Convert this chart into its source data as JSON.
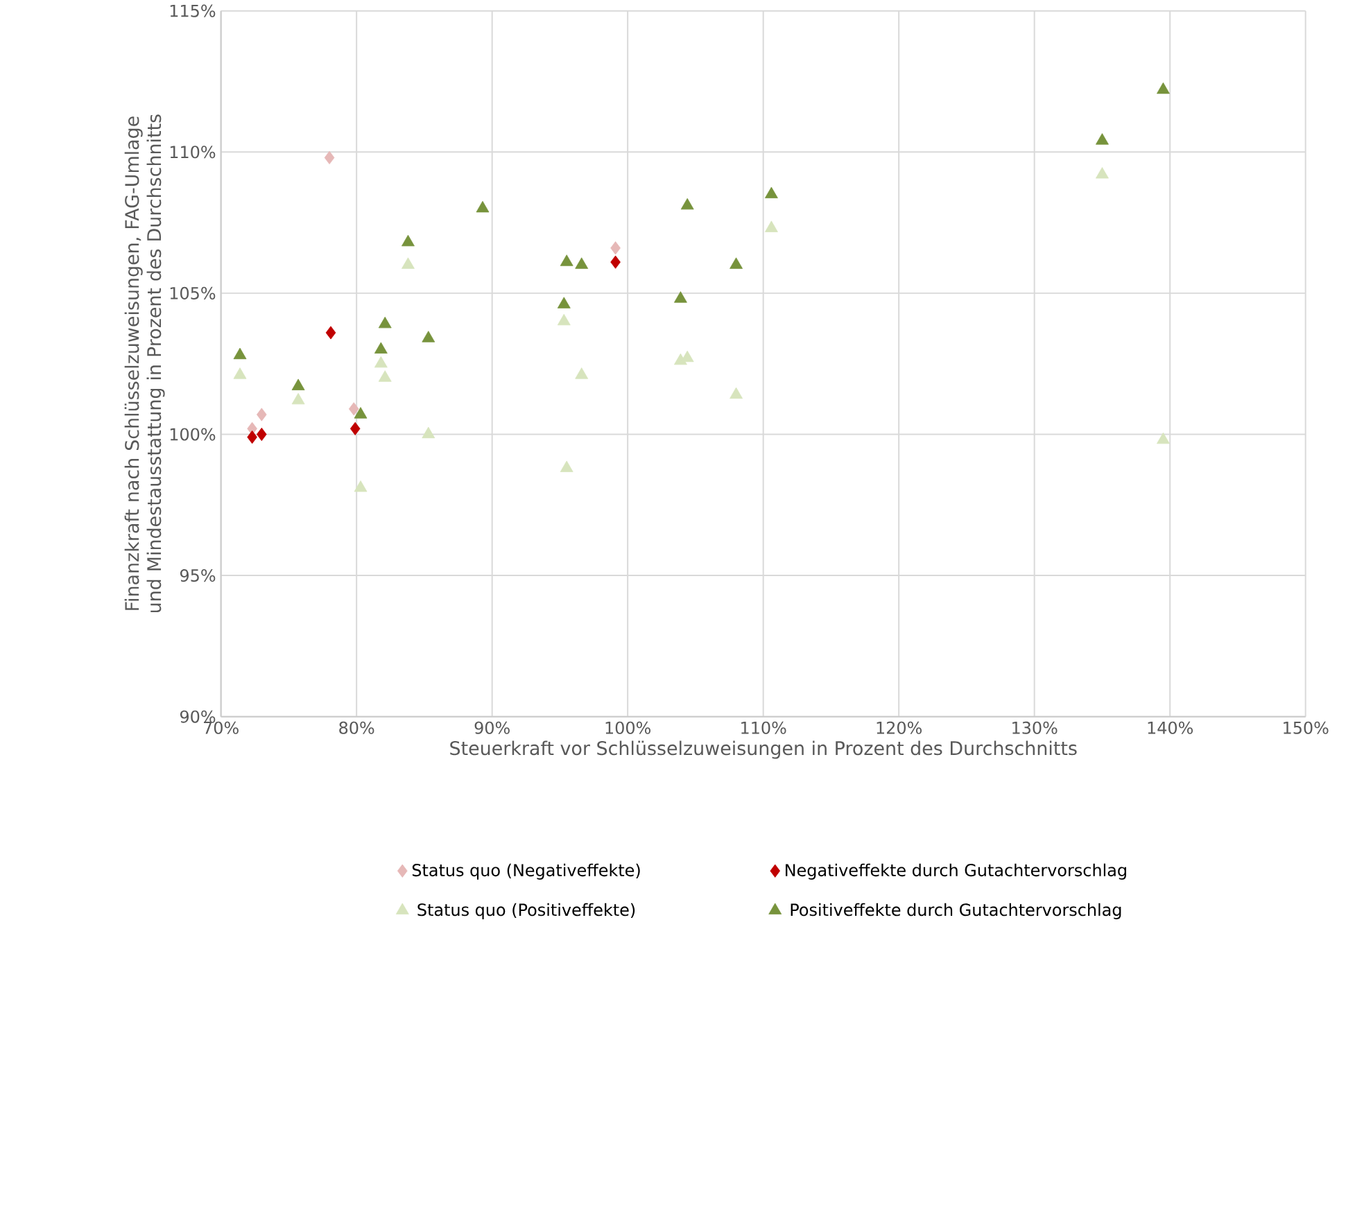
{
  "chart_data": {
    "type": "scatter",
    "xlabel": "Steuerkraft vor Schlüsselzuweisungen in Prozent des Durchschnitts",
    "ylabel": "Finanzkraft nach Schlüsselzuweisungen, FAG-Umlage und Mindestausstattung in Prozent des Durchschnitts",
    "xlim": [
      70,
      150
    ],
    "ylim": [
      90,
      115
    ],
    "xticks": [
      {
        "value": 70,
        "label": "70%"
      },
      {
        "value": 80,
        "label": "80%"
      },
      {
        "value": 90,
        "label": "90%"
      },
      {
        "value": 100,
        "label": "100%"
      },
      {
        "value": 110,
        "label": "110%"
      },
      {
        "value": 120,
        "label": "120%"
      },
      {
        "value": 130,
        "label": "130%"
      },
      {
        "value": 140,
        "label": "140%"
      },
      {
        "value": 150,
        "label": "150%"
      }
    ],
    "yticks": [
      {
        "value": 90,
        "label": "90%"
      },
      {
        "value": 95,
        "label": "95%"
      },
      {
        "value": 100,
        "label": "100%"
      },
      {
        "value": 105,
        "label": "105%"
      },
      {
        "value": 110,
        "label": "110%"
      },
      {
        "value": 115,
        "label": "115%"
      }
    ],
    "grid": true,
    "legend": "bottom",
    "series": [
      {
        "name": "Status quo (Negativeffekte)",
        "color": "#e6b8b7",
        "marker": "diamond",
        "x": [
          78.0,
          72.3,
          73.0,
          79.8,
          99.1
        ],
        "values": [
          109.8,
          100.2,
          100.7,
          100.9,
          106.6
        ]
      },
      {
        "name": "Negativeffekte durch Gutachtervorschlag",
        "color": "#c00000",
        "marker": "diamond",
        "x": [
          72.3,
          73.0,
          78.1,
          79.9,
          99.1
        ],
        "values": [
          99.9,
          100.0,
          103.6,
          100.2,
          106.1
        ]
      },
      {
        "name": "Status quo (Positiveffekte)",
        "color": "#d7e4bd",
        "marker": "triangle",
        "x": [
          71.4,
          75.7,
          80.3,
          81.8,
          82.1,
          83.8,
          85.3,
          95.3,
          95.5,
          96.6,
          103.9,
          104.4,
          108.0,
          110.6,
          135.0,
          139.5
        ],
        "values": [
          102.1,
          101.2,
          98.1,
          102.5,
          102.0,
          106.0,
          100.0,
          104.0,
          98.8,
          102.1,
          102.6,
          102.7,
          101.4,
          107.3,
          109.2,
          99.8
        ]
      },
      {
        "name": "Positiveffekte durch Gutachtervorschlag",
        "color": "#77933c",
        "marker": "triangle",
        "x": [
          71.4,
          75.7,
          80.3,
          81.8,
          82.1,
          83.8,
          85.3,
          89.3,
          95.3,
          95.5,
          96.6,
          103.9,
          104.4,
          108.0,
          110.6,
          135.0,
          139.5
        ],
        "values": [
          102.8,
          101.7,
          100.7,
          103.0,
          103.9,
          106.8,
          103.4,
          108.0,
          104.6,
          106.1,
          106.0,
          104.8,
          108.1,
          106.0,
          108.5,
          110.4,
          112.2
        ]
      }
    ]
  }
}
